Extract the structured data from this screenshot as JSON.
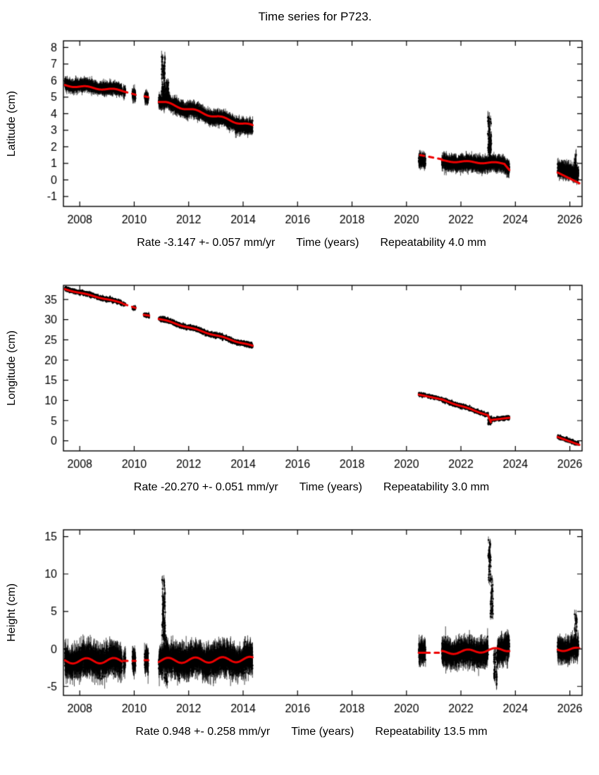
{
  "title": "Time series for P723.",
  "chart_data": [
    {
      "type": "scatter",
      "title": "Latitude component",
      "ylabel": "Latitude (cm)",
      "xlabel": "Time (years)",
      "caption_rate": "Rate -3.147 +- 0.057 mm/yr",
      "caption_repeatability": "Repeatability 4.0 mm",
      "rate_mm_yr": -3.147,
      "rate_sigma_mm_yr": 0.057,
      "repeatability_mm": 4.0,
      "xlim": [
        2007.4,
        2026.45
      ],
      "ylim": [
        -1.6,
        8.4
      ],
      "xticks": [
        2008,
        2010,
        2012,
        2014,
        2016,
        2018,
        2020,
        2022,
        2024,
        2026
      ],
      "yticks": [
        -1,
        0,
        1,
        2,
        3,
        4,
        5,
        6,
        7,
        8
      ],
      "grid": false,
      "point_color": "#000000",
      "line_color": "#ee0000",
      "segments": [
        {
          "x0": 2007.45,
          "x1": 2009.55,
          "y0": 5.8,
          "y1": 5.45,
          "noise": 0.13,
          "err": 0.22,
          "n": 760,
          "amp": 0.06
        },
        {
          "x0": 2009.6,
          "x1": 2009.68,
          "y0": 5.35,
          "y1": 5.3,
          "noise": 0.1,
          "err": 0.25,
          "n": 22
        },
        {
          "x0": 2009.93,
          "x1": 2010.05,
          "y0": 5.2,
          "y1": 5.15,
          "noise": 0.1,
          "err": 0.25,
          "n": 40
        },
        {
          "x0": 2010.38,
          "x1": 2010.52,
          "y0": 5.0,
          "y1": 4.95,
          "noise": 0.12,
          "err": 0.25,
          "n": 48
        },
        {
          "x0": 2010.9,
          "x1": 2014.35,
          "y0": 4.8,
          "y1": 3.1,
          "noise": 0.16,
          "err": 0.25,
          "n": 1260,
          "amp": 0.08
        },
        {
          "x0": 2020.45,
          "x1": 2020.7,
          "y0": 1.2,
          "y1": 1.15,
          "noise": 0.12,
          "err": 0.3,
          "n": 90
        },
        {
          "x0": 2021.3,
          "x1": 2023.6,
          "y0": 1.05,
          "y1": 0.95,
          "noise": 0.14,
          "err": 0.3,
          "n": 840,
          "amp": 0.05
        },
        {
          "x0": 2023.6,
          "x1": 2023.78,
          "y0": 0.9,
          "y1": 0.65,
          "noise": 0.13,
          "err": 0.3,
          "n": 65
        },
        {
          "x0": 2025.55,
          "x1": 2026.32,
          "y0": 0.7,
          "y1": 0.35,
          "noise": 0.17,
          "err": 0.3,
          "n": 280
        }
      ],
      "spikes": [
        {
          "x0": 2011.0,
          "x1": 2011.14,
          "ymin": 4.6,
          "ymax": 7.5,
          "n": 55,
          "err": 0.3
        },
        {
          "x0": 2011.14,
          "x1": 2011.26,
          "ymin": 4.8,
          "ymax": 6.1,
          "n": 35,
          "err": 0.3
        },
        {
          "x0": 2022.98,
          "x1": 2023.12,
          "ymin": 1.1,
          "ymax": 3.85,
          "n": 60,
          "err": 0.3
        },
        {
          "x0": 2026.16,
          "x1": 2026.25,
          "ymin": 0.6,
          "ymax": 1.6,
          "n": 22,
          "err": 0.3
        }
      ],
      "model": [
        {
          "x0": 2007.45,
          "x1": 2009.55,
          "y0": 5.72,
          "y1": 5.4,
          "amp": 0.06
        },
        {
          "x0": 2009.6,
          "x1": 2010.05,
          "y0": 5.35,
          "y1": 5.15,
          "dash": true
        },
        {
          "x0": 2010.38,
          "x1": 2010.52,
          "y0": 5.05,
          "y1": 5.0
        },
        {
          "x0": 2010.9,
          "x1": 2014.35,
          "y0": 4.75,
          "y1": 3.25,
          "amp": 0.08
        },
        {
          "x0": 2020.5,
          "x1": 2021.3,
          "y0": 1.5,
          "y1": 1.25,
          "dash": true
        },
        {
          "x0": 2021.3,
          "x1": 2023.6,
          "y0": 1.15,
          "y1": 1.0,
          "amp": 0.05
        },
        {
          "x0": 2023.6,
          "x1": 2023.78,
          "y0": 0.95,
          "y1": 0.6
        },
        {
          "x0": 2025.55,
          "x1": 2026.35,
          "y0": 0.45,
          "y1": -0.2
        }
      ]
    },
    {
      "type": "scatter",
      "title": "Longitude component",
      "ylabel": "Longitude (cm)",
      "xlabel": "Time (years)",
      "caption_rate": "Rate -20.270 +- 0.051 mm/yr",
      "caption_repeatability": "Repeatability 3.0 mm",
      "rate_mm_yr": -20.27,
      "rate_sigma_mm_yr": 0.051,
      "repeatability_mm": 3.0,
      "xlim": [
        2007.4,
        2026.45
      ],
      "ylim": [
        -2.5,
        38.5
      ],
      "xticks": [
        2008,
        2010,
        2012,
        2014,
        2016,
        2018,
        2020,
        2022,
        2024,
        2026
      ],
      "yticks": [
        0,
        5,
        10,
        15,
        20,
        25,
        30,
        35
      ],
      "grid": false,
      "point_color": "#000000",
      "line_color": "#ee0000",
      "segments": [
        {
          "x0": 2007.45,
          "x1": 2009.55,
          "y0": 37.7,
          "y1": 34.2,
          "noise": 0.25,
          "err": 0.3,
          "n": 760,
          "amp": 0.1
        },
        {
          "x0": 2009.6,
          "x1": 2009.68,
          "y0": 33.9,
          "y1": 33.8,
          "noise": 0.2,
          "err": 0.3,
          "n": 22
        },
        {
          "x0": 2009.93,
          "x1": 2010.05,
          "y0": 33.0,
          "y1": 32.8,
          "noise": 0.2,
          "err": 0.3,
          "n": 40
        },
        {
          "x0": 2010.35,
          "x1": 2010.55,
          "y0": 31.2,
          "y1": 31.0,
          "noise": 0.25,
          "err": 0.3,
          "n": 60
        },
        {
          "x0": 2010.9,
          "x1": 2014.35,
          "y0": 30.3,
          "y1": 23.4,
          "noise": 0.28,
          "err": 0.3,
          "n": 1260,
          "amp": 0.15
        },
        {
          "x0": 2020.45,
          "x1": 2020.7,
          "y0": 11.5,
          "y1": 11.3,
          "noise": 0.2,
          "err": 0.3,
          "n": 90
        },
        {
          "x0": 2020.75,
          "x1": 2021.3,
          "y0": 11.2,
          "y1": 10.3,
          "noise": 0.2,
          "err": 0.3,
          "n": 130
        },
        {
          "x0": 2021.3,
          "x1": 2023.0,
          "y0": 10.2,
          "y1": 6.4,
          "noise": 0.22,
          "err": 0.3,
          "n": 620,
          "amp": 0.1
        },
        {
          "x0": 2023.12,
          "x1": 2023.78,
          "y0": 5.25,
          "y1": 5.75,
          "noise": 0.2,
          "err": 0.3,
          "n": 240
        },
        {
          "x0": 2025.55,
          "x1": 2026.32,
          "y0": 1.0,
          "y1": -0.75,
          "noise": 0.2,
          "err": 0.3,
          "n": 280
        }
      ],
      "spikes": [
        {
          "x0": 2023.0,
          "x1": 2023.12,
          "ymin": 3.9,
          "ymax": 6.2,
          "n": 45,
          "err": 0.3
        }
      ],
      "model": [
        {
          "x0": 2007.45,
          "x1": 2009.55,
          "y0": 37.55,
          "y1": 34.15,
          "amp": 0.08
        },
        {
          "x0": 2009.6,
          "x1": 2010.05,
          "y0": 33.9,
          "y1": 32.9,
          "dash": true
        },
        {
          "x0": 2010.35,
          "x1": 2010.55,
          "y0": 31.2,
          "y1": 31.0
        },
        {
          "x0": 2010.9,
          "x1": 2014.35,
          "y0": 30.25,
          "y1": 23.45,
          "amp": 0.12
        },
        {
          "x0": 2020.45,
          "x1": 2021.3,
          "y0": 11.45,
          "y1": 10.25
        },
        {
          "x0": 2021.3,
          "x1": 2023.0,
          "y0": 10.2,
          "y1": 6.35,
          "amp": 0.08
        },
        {
          "x0": 2023.0,
          "x1": 2023.1,
          "y0": 6.2,
          "y1": 4.6
        },
        {
          "x0": 2023.1,
          "x1": 2023.78,
          "y0": 5.15,
          "y1": 5.7
        },
        {
          "x0": 2025.55,
          "x1": 2026.35,
          "y0": 0.95,
          "y1": -1.0
        }
      ]
    },
    {
      "type": "scatter",
      "title": "Height component",
      "ylabel": "Height (cm)",
      "xlabel": "Time (years)",
      "caption_rate": "Rate 0.948 +- 0.258 mm/yr",
      "caption_repeatability": "Repeatability 13.5 mm",
      "rate_mm_yr": 0.948,
      "rate_sigma_mm_yr": 0.258,
      "repeatability_mm": 13.5,
      "xlim": [
        2007.4,
        2026.45
      ],
      "ylim": [
        -6.2,
        15.9
      ],
      "xticks": [
        2008,
        2010,
        2012,
        2014,
        2016,
        2018,
        2020,
        2022,
        2024,
        2026
      ],
      "yticks": [
        -5,
        0,
        5,
        10,
        15
      ],
      "grid": false,
      "point_color": "#000000",
      "line_color": "#ee0000",
      "segments": [
        {
          "x0": 2007.45,
          "x1": 2009.55,
          "y0": -1.6,
          "y1": -1.55,
          "noise": 0.75,
          "err": 1.15,
          "n": 760,
          "amp": 0.3
        },
        {
          "x0": 2009.6,
          "x1": 2009.68,
          "y0": -1.7,
          "y1": -1.7,
          "noise": 0.5,
          "err": 1.1,
          "n": 22
        },
        {
          "x0": 2009.93,
          "x1": 2010.05,
          "y0": -1.6,
          "y1": -1.6,
          "noise": 0.5,
          "err": 1.1,
          "n": 40
        },
        {
          "x0": 2010.38,
          "x1": 2010.52,
          "y0": -1.5,
          "y1": -1.5,
          "noise": 0.6,
          "err": 1.1,
          "n": 48
        },
        {
          "x0": 2010.9,
          "x1": 2014.35,
          "y0": -1.55,
          "y1": -1.45,
          "noise": 0.75,
          "err": 1.15,
          "n": 1260,
          "amp": 0.3
        },
        {
          "x0": 2020.45,
          "x1": 2020.7,
          "y0": -0.45,
          "y1": -0.45,
          "noise": 0.6,
          "err": 1.0,
          "n": 90
        },
        {
          "x0": 2021.3,
          "x1": 2023.0,
          "y0": -0.55,
          "y1": -0.4,
          "noise": 0.65,
          "err": 1.0,
          "n": 620,
          "amp": 0.25
        },
        {
          "x0": 2023.33,
          "x1": 2023.62,
          "y0": -0.25,
          "y1": -0.1,
          "noise": 0.6,
          "err": 1.0,
          "n": 110
        },
        {
          "x0": 2023.62,
          "x1": 2023.78,
          "y0": 0.2,
          "y1": 0.35,
          "noise": 0.7,
          "err": 1.0,
          "n": 60
        },
        {
          "x0": 2025.55,
          "x1": 2026.32,
          "y0": -0.05,
          "y1": 0.05,
          "noise": 0.55,
          "err": 0.95,
          "n": 280,
          "amp": 0.2
        }
      ],
      "spikes": [
        {
          "x0": 2011.02,
          "x1": 2011.14,
          "ymin": 1.5,
          "ymax": 9.3,
          "n": 55,
          "err": 0.6
        },
        {
          "x0": 2011.1,
          "x1": 2011.24,
          "ymin": -4.6,
          "ymax": 2.0,
          "n": 45,
          "err": 0.6
        },
        {
          "x0": 2023.0,
          "x1": 2023.1,
          "ymin": 9.0,
          "ymax": 14.6,
          "n": 40,
          "err": 0.5
        },
        {
          "x0": 2023.08,
          "x1": 2023.18,
          "ymin": 4.2,
          "ymax": 9.5,
          "n": 35,
          "err": 0.5
        },
        {
          "x0": 2023.2,
          "x1": 2023.33,
          "ymin": -4.8,
          "ymax": -0.3,
          "n": 35,
          "err": 0.6
        },
        {
          "x0": 2026.17,
          "x1": 2026.26,
          "ymin": 0.8,
          "ymax": 4.7,
          "n": 22,
          "err": 0.6
        }
      ],
      "model": [
        {
          "x0": 2007.45,
          "x1": 2009.55,
          "y0": -1.6,
          "y1": -1.55,
          "amp": 0.35
        },
        {
          "x0": 2009.6,
          "x1": 2010.05,
          "y0": -1.6,
          "y1": -1.6,
          "dash": true
        },
        {
          "x0": 2010.38,
          "x1": 2010.52,
          "y0": -1.5,
          "y1": -1.5
        },
        {
          "x0": 2010.9,
          "x1": 2014.35,
          "y0": -1.55,
          "y1": -1.4,
          "amp": 0.35
        },
        {
          "x0": 2020.45,
          "x1": 2020.7,
          "y0": -0.5,
          "y1": -0.5
        },
        {
          "x0": 2020.7,
          "x1": 2021.3,
          "y0": -0.5,
          "y1": -0.5,
          "dash": true
        },
        {
          "x0": 2021.3,
          "x1": 2023.78,
          "y0": -0.5,
          "y1": -0.05,
          "amp": 0.25
        },
        {
          "x0": 2025.55,
          "x1": 2026.35,
          "y0": 0.0,
          "y1": -0.1,
          "amp": 0.25
        }
      ]
    }
  ]
}
